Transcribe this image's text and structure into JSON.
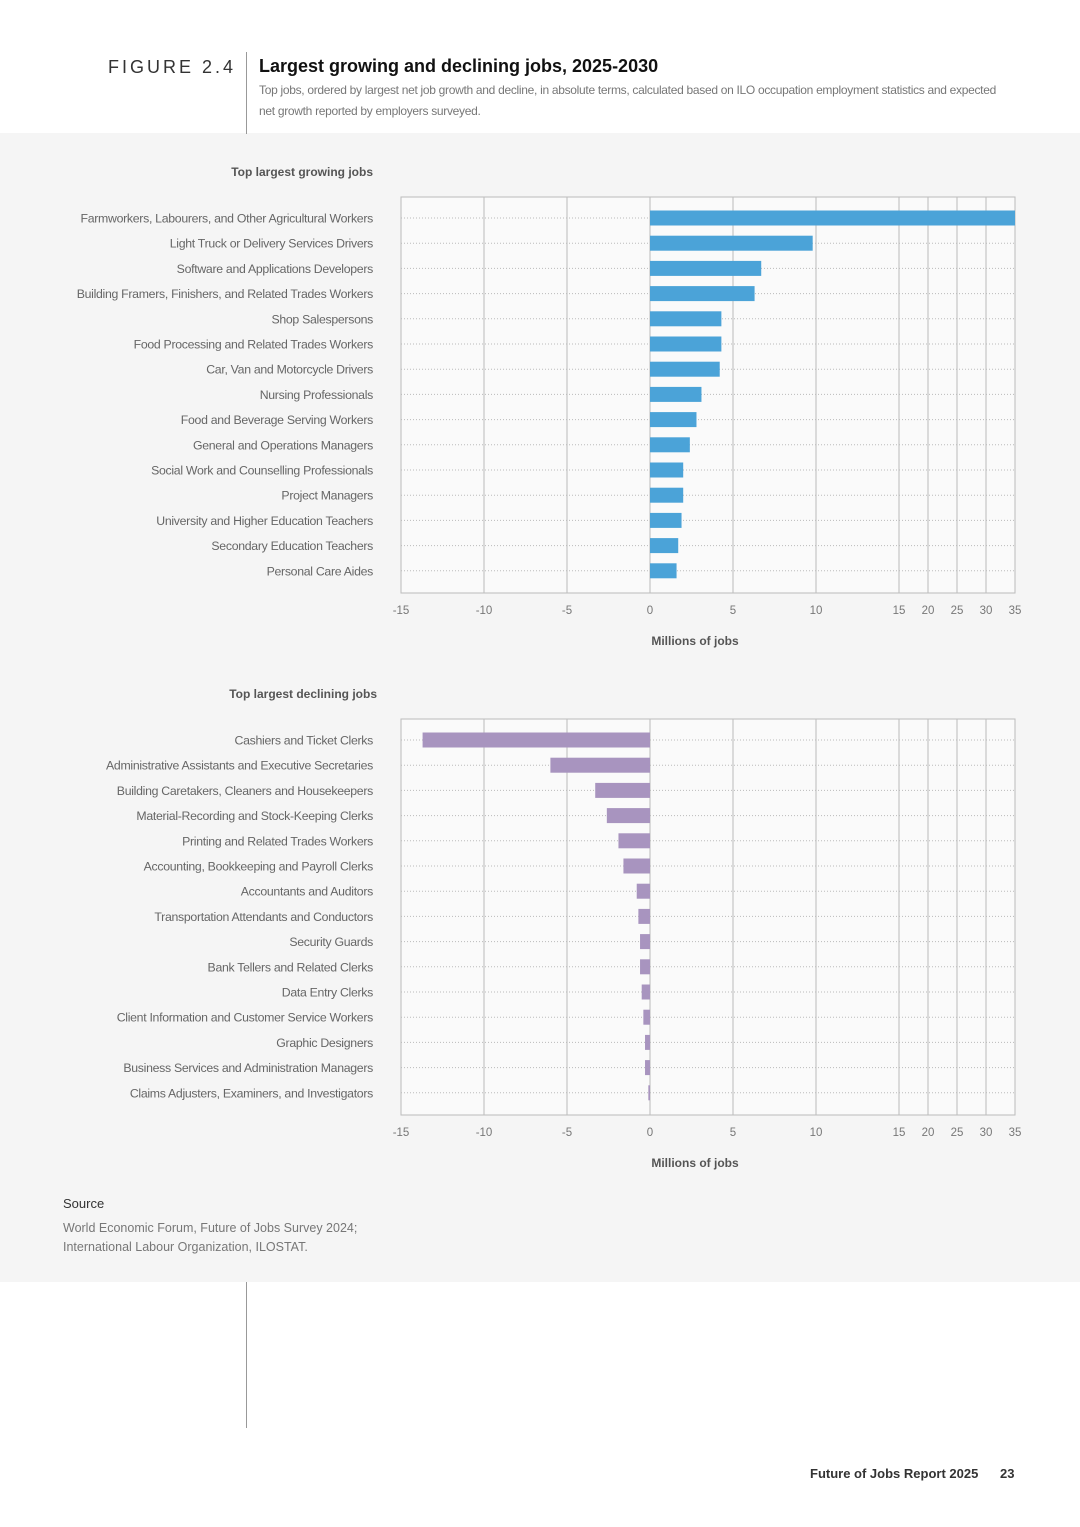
{
  "header": {
    "figure_label": "FIGURE 2.4",
    "title": "Largest growing and declining jobs, 2025-2030",
    "subtitle": "Top jobs, ordered by largest net job growth and decline, in absolute terms, calculated based on ILO occupation employment statistics and expected net growth  reported by employers surveyed."
  },
  "chart_data": [
    {
      "type": "bar",
      "orientation": "horizontal",
      "title": "Top largest growing jobs",
      "xlabel": "Millions of jobs",
      "xlim": [
        -15,
        35
      ],
      "xticks": [
        "-15",
        "-10",
        "-5",
        "0",
        "5",
        "10",
        "15",
        "20",
        "25",
        "30",
        "35"
      ],
      "axis_note": "scale compressed above 15",
      "color": "#4ba3d8",
      "grid": "vertical solid, horizontal dotted",
      "categories": [
        "Farmworkers, Labourers, and Other Agricultural Workers",
        "Light Truck or Delivery Services Drivers",
        "Software and Applications Developers",
        "Building Framers, Finishers, and Related Trades Workers",
        "Shop Salespersons",
        "Food Processing and Related Trades Workers",
        "Car, Van and Motorcycle Drivers",
        "Nursing Professionals",
        "Food and Beverage Serving Workers",
        "General and Operations Managers",
        "Social Work and Counselling Professionals",
        "Project Managers",
        "University and Higher Education Teachers",
        "Secondary Education Teachers",
        "Personal Care Aides"
      ],
      "values": [
        35,
        9.8,
        6.7,
        6.3,
        4.3,
        4.3,
        4.2,
        3.1,
        2.8,
        2.4,
        2.0,
        2.0,
        1.9,
        1.7,
        1.6
      ]
    },
    {
      "type": "bar",
      "orientation": "horizontal",
      "title": "Top largest declining jobs",
      "xlabel": "Millions of jobs",
      "xlim": [
        -15,
        35
      ],
      "xticks": [
        "-15",
        "-10",
        "-5",
        "0",
        "5",
        "10",
        "15",
        "20",
        "25",
        "30",
        "35"
      ],
      "axis_note": "scale compressed above 15",
      "color": "#a894bf",
      "grid": "vertical solid, horizontal dotted",
      "categories": [
        "Cashiers and Ticket Clerks",
        "Administrative Assistants and Executive Secretaries",
        "Building Caretakers, Cleaners and Housekeepers",
        "Material-Recording and Stock-Keeping Clerks",
        "Printing and Related Trades Workers",
        "Accounting, Bookkeeping and Payroll Clerks",
        "Accountants and Auditors",
        "Transportation Attendants and Conductors",
        "Security Guards",
        "Bank Tellers and Related Clerks",
        "Data Entry Clerks",
        "Client Information and Customer Service Workers",
        "Graphic Designers",
        "Business Services and Administration Managers",
        "Claims Adjusters, Examiners, and Investigators"
      ],
      "values": [
        -13.7,
        -6.0,
        -3.3,
        -2.6,
        -1.9,
        -1.6,
        -0.8,
        -0.7,
        -0.6,
        -0.6,
        -0.5,
        -0.4,
        -0.3,
        -0.3,
        -0.1
      ]
    }
  ],
  "source": {
    "heading": "Source",
    "line1": "World Economic Forum, Future of Jobs Survey 2024;",
    "line2": "International Labour Organization, ILOSTAT."
  },
  "footer": {
    "report": "Future of Jobs Report 2025",
    "page": "23"
  }
}
